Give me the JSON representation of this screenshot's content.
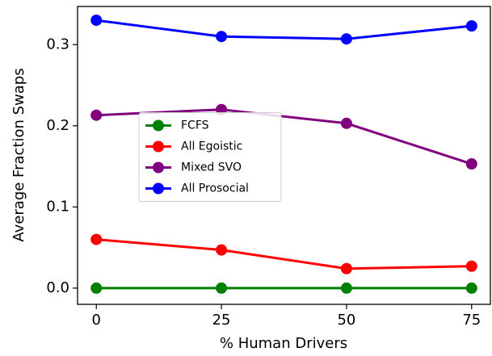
{
  "chart_data": {
    "type": "line",
    "x_label": "% Human Drivers",
    "y_label": "Average Fraction Swaps",
    "x": [
      0,
      25,
      50,
      75
    ],
    "series": [
      {
        "name": "FCFS",
        "color": "#008000",
        "values": [
          0,
          0,
          0,
          0
        ]
      },
      {
        "name": "All Egoistic",
        "color": "#ff0000",
        "values": [
          0.06,
          0.047,
          0.024,
          0.027
        ]
      },
      {
        "name": "Mixed SVO",
        "color": "#800080",
        "values": [
          0.213,
          0.22,
          0.203,
          0.153
        ]
      },
      {
        "name": "All Prosocial",
        "color": "#0000ff",
        "values": [
          0.33,
          0.31,
          0.307,
          0.323
        ]
      }
    ],
    "xlim": [
      -3.75,
      78.75
    ],
    "xticks": [
      0,
      25,
      50,
      75
    ],
    "ylim": [
      -0.02,
      0.347
    ],
    "yticks": [
      {
        "value": 0,
        "label": "0.0"
      },
      {
        "value": 0.1,
        "label": "0.1"
      },
      {
        "value": 0.2,
        "label": "0.2"
      },
      {
        "value": 0.3,
        "label": "0.3"
      }
    ],
    "grid": false,
    "legend_loc": "center left"
  }
}
